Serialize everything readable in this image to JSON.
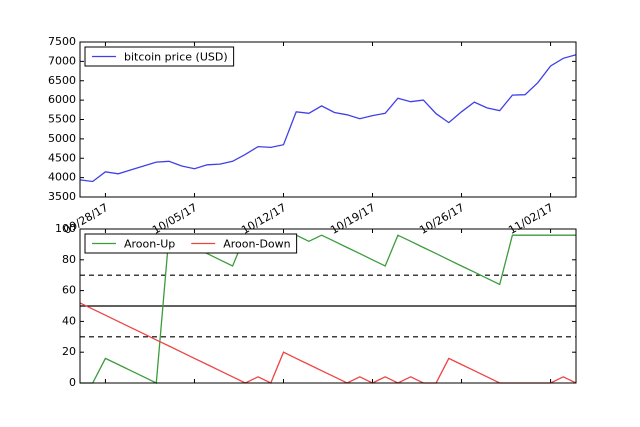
{
  "chart_data": [
    {
      "type": "line",
      "x": [
        "2017-09-26",
        "2017-09-27",
        "2017-09-28",
        "2017-09-29",
        "2017-09-30",
        "2017-10-01",
        "2017-10-02",
        "2017-10-03",
        "2017-10-04",
        "2017-10-05",
        "2017-10-06",
        "2017-10-07",
        "2017-10-08",
        "2017-10-09",
        "2017-10-10",
        "2017-10-11",
        "2017-10-12",
        "2017-10-13",
        "2017-10-14",
        "2017-10-15",
        "2017-10-16",
        "2017-10-17",
        "2017-10-18",
        "2017-10-19",
        "2017-10-20",
        "2017-10-21",
        "2017-10-22",
        "2017-10-23",
        "2017-10-24",
        "2017-10-25",
        "2017-10-26",
        "2017-10-27",
        "2017-10-28",
        "2017-10-29",
        "2017-10-30",
        "2017-10-31",
        "2017-11-01",
        "2017-11-02",
        "2017-11-03",
        "2017-11-04"
      ],
      "series": [
        {
          "name": "bitcoin price (USD)",
          "color": "#4040e8",
          "values": [
            3940,
            3900,
            4150,
            4100,
            4200,
            4300,
            4400,
            4420,
            4300,
            4230,
            4330,
            4350,
            4420,
            4600,
            4800,
            4780,
            4850,
            5700,
            5660,
            5850,
            5680,
            5620,
            5520,
            5600,
            5660,
            6050,
            5960,
            6000,
            5650,
            5420,
            5700,
            5950,
            5800,
            5730,
            6130,
            6140,
            6450,
            6880,
            7080,
            7170
          ]
        }
      ],
      "xlim": [
        "2017-09-26",
        "2017-11-04"
      ],
      "xticks": [
        {
          "value": "2017-09-28",
          "label": "09/28/17"
        },
        {
          "value": "2017-10-05",
          "label": "10/05/17"
        },
        {
          "value": "2017-10-12",
          "label": "10/12/17"
        },
        {
          "value": "2017-10-19",
          "label": "10/19/17"
        },
        {
          "value": "2017-10-26",
          "label": "10/26/17"
        },
        {
          "value": "2017-11-02",
          "label": "11/02/17"
        }
      ],
      "ylim": [
        3500,
        7500
      ],
      "yticks": [
        3500,
        4000,
        4500,
        5000,
        5500,
        6000,
        6500,
        7000,
        7500
      ],
      "legend": "upper left"
    },
    {
      "type": "line",
      "x": [
        "2017-09-26",
        "2017-09-27",
        "2017-09-28",
        "2017-09-29",
        "2017-09-30",
        "2017-10-01",
        "2017-10-02",
        "2017-10-03",
        "2017-10-04",
        "2017-10-05",
        "2017-10-06",
        "2017-10-07",
        "2017-10-08",
        "2017-10-09",
        "2017-10-10",
        "2017-10-11",
        "2017-10-12",
        "2017-10-13",
        "2017-10-14",
        "2017-10-15",
        "2017-10-16",
        "2017-10-17",
        "2017-10-18",
        "2017-10-19",
        "2017-10-20",
        "2017-10-21",
        "2017-10-22",
        "2017-10-23",
        "2017-10-24",
        "2017-10-25",
        "2017-10-26",
        "2017-10-27",
        "2017-10-28",
        "2017-10-29",
        "2017-10-30",
        "2017-10-31",
        "2017-11-01",
        "2017-11-02",
        "2017-11-03",
        "2017-11-04"
      ],
      "series": [
        {
          "name": "Aroon-Up",
          "color": "#3c9c3c",
          "values": [
            0,
            0,
            16,
            12,
            8,
            4,
            0,
            96,
            92,
            88,
            84,
            80,
            76,
            96,
            96,
            96,
            96,
            96,
            92,
            96,
            92,
            88,
            84,
            80,
            76,
            96,
            92,
            88,
            84,
            80,
            76,
            72,
            68,
            64,
            96,
            96,
            96,
            96,
            96,
            96
          ]
        },
        {
          "name": "Aroon-Down",
          "color": "#ee4444",
          "values": [
            52,
            48,
            44,
            40,
            36,
            32,
            28,
            24,
            20,
            16,
            12,
            8,
            4,
            0,
            4,
            0,
            20,
            16,
            12,
            8,
            4,
            0,
            4,
            0,
            4,
            0,
            4,
            0,
            0,
            16,
            12,
            8,
            4,
            0,
            0,
            0,
            0,
            0,
            4,
            0
          ]
        }
      ],
      "xlim": [
        "2017-09-26",
        "2017-11-04"
      ],
      "ylim": [
        0,
        100
      ],
      "yticks": [
        0,
        20,
        40,
        60,
        80,
        100
      ],
      "reference_lines": [
        {
          "value": 70,
          "style": "dashed"
        },
        {
          "value": 50,
          "style": "solid"
        },
        {
          "value": 30,
          "style": "dashed"
        }
      ],
      "legend": "upper left"
    }
  ]
}
